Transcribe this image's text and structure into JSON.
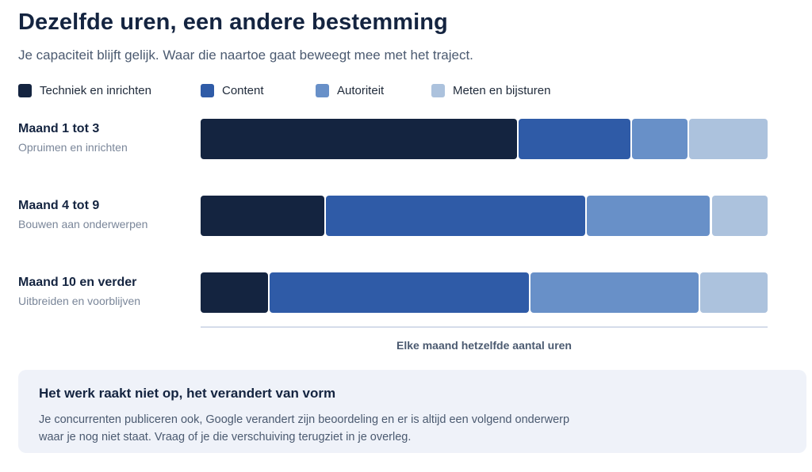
{
  "header": {
    "title": "Dezelfde uren, een andere bestemming",
    "subtitle": "Je capaciteit blijft gelijk. Waar die naartoe gaat beweegt mee met het traject."
  },
  "legend": [
    {
      "label": "Techniek en inrichten",
      "color": "#142440"
    },
    {
      "label": "Content",
      "color": "#2f5ba7"
    },
    {
      "label": "Autoriteit",
      "color": "#6890c8"
    },
    {
      "label": "Meten en bijsturen",
      "color": "#acc2dd"
    }
  ],
  "chart_data": {
    "type": "bar",
    "orientation": "horizontal",
    "stacked": true,
    "normalized": true,
    "categories": [
      "Maand 1 tot 3",
      "Maand 4 tot 9",
      "Maand 10 en verder"
    ],
    "category_subtitles": [
      "Opruimen en inrichten",
      "Bouwen aan onderwerpen",
      "Uitbreiden en voorblijven"
    ],
    "series": [
      {
        "name": "Techniek en inrichten",
        "values": [
          56,
          22,
          12
        ]
      },
      {
        "name": "Content",
        "values": [
          20,
          46,
          46
        ]
      },
      {
        "name": "Autoriteit",
        "values": [
          10,
          22,
          30
        ]
      },
      {
        "name": "Meten en bijsturen",
        "values": [
          14,
          10,
          12
        ]
      }
    ],
    "xlabel": "Elke maand hetzelfde aantal uren",
    "xlim": [
      0,
      100
    ],
    "grid": false,
    "legend_position": "top"
  },
  "callout": {
    "title": "Het werk raakt niet op, het verandert van vorm",
    "text": "Je concurrenten publiceren ook, Google verandert zijn beoordeling en er is altijd een volgend onderwerp waar je nog niet staat. Vraag of je die verschuiving terugziet in je overleg."
  }
}
